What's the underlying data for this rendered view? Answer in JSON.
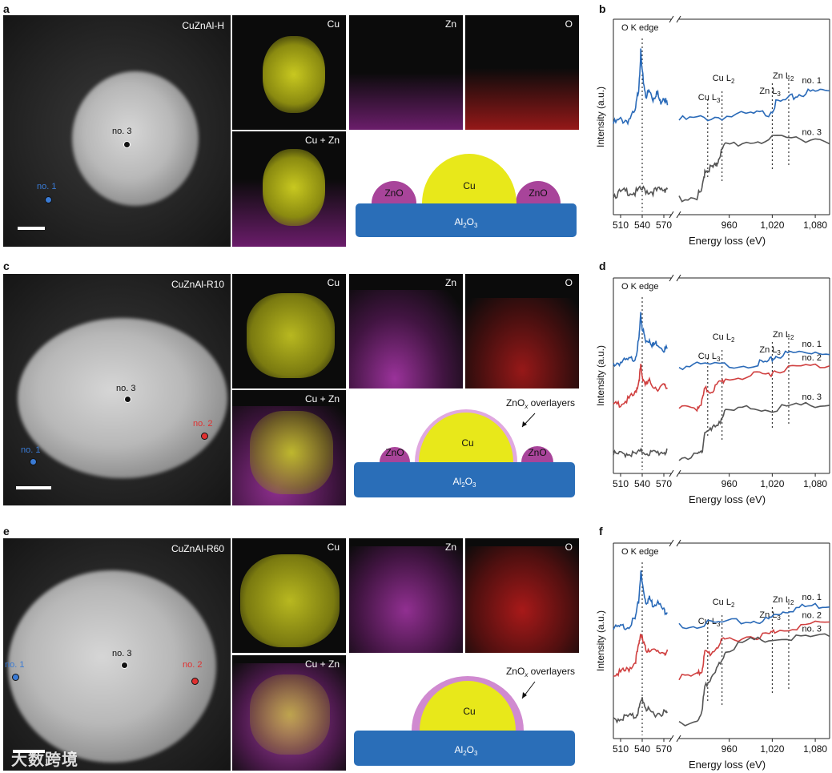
{
  "panels": {
    "a": {
      "letter": "a",
      "sample": "CuZnAl-H",
      "spots": [
        "no. 3",
        "no. 1"
      ]
    },
    "c": {
      "letter": "c",
      "sample": "CuZnAl-R10",
      "spots": [
        "no. 3",
        "no. 1",
        "no. 2"
      ]
    },
    "e": {
      "letter": "e",
      "sample": "CuZnAl-R60",
      "spots": [
        "no. 3",
        "no. 1",
        "no. 2"
      ]
    },
    "b": {
      "letter": "b"
    },
    "d": {
      "letter": "d"
    },
    "f": {
      "letter": "f"
    }
  },
  "maps": {
    "cu": "Cu",
    "zn": "Zn",
    "o": "O",
    "cuzn": "Cu + Zn"
  },
  "schematic": {
    "support": "Al2O3",
    "support_main": "Al",
    "support_sub1": "2",
    "support_mid": "O",
    "support_sub2": "3",
    "cu": "Cu",
    "zno": "ZnO",
    "overlayer": "ZnOx overlayers",
    "overlayer_main": "ZnO",
    "overlayer_sub": "x",
    "overlayer_rest": " overlayers"
  },
  "colors": {
    "cu_map": "#d8d820",
    "zn_map": "#d040d0",
    "o_map": "#e02020",
    "spot1": "#3a7bd5",
    "spot2": "#e03030",
    "spot3": "#111111",
    "trace1": "#2a6ab8",
    "trace2": "#d04040",
    "trace3": "#555555",
    "cu_schem": "#e8e81a",
    "zno_schem": "#a8449a",
    "al2o3_schem": "#2a6eb8"
  },
  "watermark": "大数跨境",
  "chart_data": [
    {
      "panel": "b",
      "type": "line",
      "title": "",
      "xlabel": "Energy loss (eV)",
      "ylabel": "Intensity (a.u.)",
      "x_ticks_left": [
        "510",
        "540",
        "570"
      ],
      "x_ticks_right": [
        "960",
        "1,020",
        "1,080"
      ],
      "xlim_left": [
        500,
        580
      ],
      "xlim_right": [
        890,
        1100
      ],
      "annotations": [
        "O K edge",
        "Cu L",
        "3",
        "Cu L",
        "2",
        "Zn L",
        "3",
        "Zn L",
        "2"
      ],
      "edges": [
        540,
        930,
        950,
        1020,
        1043
      ],
      "series": [
        {
          "name": "no. 1",
          "offset": 2.0,
          "left": [
            [
              500,
              0.2
            ],
            [
              510,
              0.3
            ],
            [
              520,
              0.3
            ],
            [
              530,
              0.5
            ],
            [
              535,
              1.2
            ],
            [
              538,
              2.2
            ],
            [
              540,
              1.6
            ],
            [
              545,
              1.0
            ],
            [
              550,
              1.1
            ],
            [
              555,
              0.9
            ],
            [
              560,
              1.1
            ],
            [
              565,
              0.8
            ],
            [
              570,
              1.0
            ],
            [
              575,
              0.7
            ]
          ],
          "right": [
            [
              890,
              0.3
            ],
            [
              920,
              0.35
            ],
            [
              950,
              0.4
            ],
            [
              990,
              0.45
            ],
            [
              1015,
              0.5
            ],
            [
              1025,
              0.75
            ],
            [
              1045,
              0.9
            ],
            [
              1060,
              1.05
            ],
            [
              1080,
              1.1
            ],
            [
              1100,
              1.2
            ]
          ]
        },
        {
          "name": "no. 3",
          "offset": 0.0,
          "left": [
            [
              500,
              0.2
            ],
            [
              510,
              0.25
            ],
            [
              520,
              0.3
            ],
            [
              530,
              0.25
            ],
            [
              540,
              0.35
            ],
            [
              550,
              0.3
            ],
            [
              560,
              0.3
            ],
            [
              570,
              0.35
            ],
            [
              575,
              0.4
            ]
          ],
          "right": [
            [
              890,
              0.1
            ],
            [
              915,
              0.15
            ],
            [
              922,
              0.3
            ],
            [
              926,
              0.9
            ],
            [
              935,
              0.95
            ],
            [
              942,
              1.0
            ],
            [
              946,
              1.3
            ],
            [
              955,
              1.6
            ],
            [
              990,
              1.7
            ],
            [
              1020,
              1.75
            ],
            [
              1060,
              1.8
            ],
            [
              1100,
              1.75
            ]
          ]
        }
      ]
    },
    {
      "panel": "d",
      "type": "line",
      "title": "",
      "xlabel": "Energy loss (eV)",
      "ylabel": "Intensity (a.u.)",
      "x_ticks_left": [
        "510",
        "540",
        "570"
      ],
      "x_ticks_right": [
        "960",
        "1,020",
        "1,080"
      ],
      "xlim_left": [
        500,
        580
      ],
      "xlim_right": [
        890,
        1100
      ],
      "annotations": [
        "O K edge",
        "Cu L",
        "3",
        "Cu L",
        "2",
        "Zn L",
        "3",
        "Zn L",
        "2"
      ],
      "edges": [
        540,
        930,
        950,
        1020,
        1043
      ],
      "series": [
        {
          "name": "no. 1",
          "offset": 3.0,
          "left": [
            [
              500,
              0.2
            ],
            [
              510,
              0.25
            ],
            [
              520,
              0.3
            ],
            [
              530,
              0.4
            ],
            [
              535,
              0.9
            ],
            [
              538,
              1.8
            ],
            [
              540,
              1.4
            ],
            [
              545,
              0.9
            ],
            [
              550,
              1.0
            ],
            [
              555,
              0.8
            ],
            [
              560,
              0.9
            ],
            [
              570,
              0.7
            ],
            [
              575,
              0.7
            ]
          ],
          "right": [
            [
              890,
              0.1
            ],
            [
              920,
              0.15
            ],
            [
              960,
              0.15
            ],
            [
              1000,
              0.2
            ],
            [
              1015,
              0.25
            ],
            [
              1025,
              0.45
            ],
            [
              1045,
              0.55
            ],
            [
              1070,
              0.6
            ],
            [
              1100,
              0.6
            ]
          ]
        },
        {
          "name": "no. 2",
          "offset": 1.5,
          "left": [
            [
              500,
              0.3
            ],
            [
              510,
              0.4
            ],
            [
              520,
              0.5
            ],
            [
              530,
              0.7
            ],
            [
              535,
              1.1
            ],
            [
              538,
              1.6
            ],
            [
              540,
              1.3
            ],
            [
              545,
              1.0
            ],
            [
              550,
              1.1
            ],
            [
              560,
              0.9
            ],
            [
              570,
              0.95
            ],
            [
              575,
              0.9
            ]
          ],
          "right": [
            [
              890,
              0.2
            ],
            [
              915,
              0.25
            ],
            [
              922,
              0.45
            ],
            [
              926,
              0.85
            ],
            [
              935,
              0.8
            ],
            [
              946,
              1.05
            ],
            [
              955,
              1.2
            ],
            [
              990,
              1.3
            ],
            [
              1015,
              1.35
            ],
            [
              1025,
              1.5
            ],
            [
              1060,
              1.6
            ],
            [
              1100,
              1.65
            ]
          ]
        },
        {
          "name": "no. 3",
          "offset": 0.0,
          "left": [
            [
              500,
              0.2
            ],
            [
              510,
              0.2
            ],
            [
              520,
              0.25
            ],
            [
              530,
              0.2
            ],
            [
              540,
              0.3
            ],
            [
              550,
              0.25
            ],
            [
              560,
              0.25
            ],
            [
              570,
              0.3
            ],
            [
              575,
              0.25
            ]
          ],
          "right": [
            [
              890,
              0.1
            ],
            [
              915,
              0.15
            ],
            [
              922,
              0.3
            ],
            [
              926,
              0.95
            ],
            [
              935,
              1.0
            ],
            [
              946,
              1.3
            ],
            [
              955,
              1.6
            ],
            [
              990,
              1.75
            ],
            [
              1020,
              1.7
            ],
            [
              1060,
              1.8
            ],
            [
              1100,
              1.85
            ]
          ]
        }
      ]
    },
    {
      "panel": "f",
      "type": "line",
      "title": "",
      "xlabel": "Energy loss (eV)",
      "ylabel": "Intensity (a.u.)",
      "x_ticks_left": [
        "510",
        "540",
        "570"
      ],
      "x_ticks_right": [
        "960",
        "1,020",
        "1,080"
      ],
      "xlim_left": [
        500,
        580
      ],
      "xlim_right": [
        890,
        1100
      ],
      "annotations": [
        "O K edge",
        "Cu L",
        "3",
        "Cu L",
        "2",
        "Zn L",
        "3",
        "Zn L",
        "2"
      ],
      "edges": [
        540,
        930,
        950,
        1020,
        1043
      ],
      "series": [
        {
          "name": "no. 1",
          "offset": 3.0,
          "left": [
            [
              500,
              0.2
            ],
            [
              510,
              0.25
            ],
            [
              520,
              0.3
            ],
            [
              530,
              0.5
            ],
            [
              535,
              1.1
            ],
            [
              538,
              2.1
            ],
            [
              540,
              1.7
            ],
            [
              545,
              1.1
            ],
            [
              550,
              1.2
            ],
            [
              555,
              1.0
            ],
            [
              560,
              1.1
            ],
            [
              570,
              0.8
            ],
            [
              575,
              0.8
            ]
          ],
          "right": [
            [
              890,
              0.3
            ],
            [
              920,
              0.35
            ],
            [
              950,
              0.4
            ],
            [
              990,
              0.45
            ],
            [
              1015,
              0.5
            ],
            [
              1025,
              0.7
            ],
            [
              1045,
              0.85
            ],
            [
              1070,
              0.95
            ],
            [
              1100,
              1.0
            ]
          ]
        },
        {
          "name": "no. 2",
          "offset": 1.5,
          "left": [
            [
              500,
              0.2
            ],
            [
              510,
              0.25
            ],
            [
              520,
              0.35
            ],
            [
              530,
              0.6
            ],
            [
              535,
              1.1
            ],
            [
              538,
              1.6
            ],
            [
              540,
              1.35
            ],
            [
              545,
              1.0
            ],
            [
              550,
              1.05
            ],
            [
              560,
              0.9
            ],
            [
              570,
              0.95
            ],
            [
              575,
              0.9
            ]
          ],
          "right": [
            [
              890,
              0.1
            ],
            [
              915,
              0.15
            ],
            [
              922,
              0.35
            ],
            [
              926,
              0.9
            ],
            [
              935,
              0.9
            ],
            [
              946,
              1.2
            ],
            [
              955,
              1.35
            ],
            [
              990,
              1.45
            ],
            [
              1015,
              1.5
            ],
            [
              1025,
              1.65
            ],
            [
              1060,
              1.8
            ],
            [
              1100,
              1.9
            ]
          ]
        },
        {
          "name": "no. 3",
          "offset": 0.0,
          "left": [
            [
              500,
              0.2
            ],
            [
              510,
              0.25
            ],
            [
              520,
              0.3
            ],
            [
              530,
              0.3
            ],
            [
              535,
              0.5
            ],
            [
              540,
              0.9
            ],
            [
              545,
              0.6
            ],
            [
              550,
              0.45
            ],
            [
              560,
              0.4
            ],
            [
              570,
              0.45
            ],
            [
              575,
              0.4
            ]
          ],
          "right": [
            [
              890,
              0.1
            ],
            [
              915,
              0.15
            ],
            [
              922,
              0.4
            ],
            [
              926,
              1.4
            ],
            [
              935,
              1.5
            ],
            [
              946,
              2.0
            ],
            [
              955,
              2.5
            ],
            [
              990,
              2.8
            ],
            [
              1020,
              2.85
            ],
            [
              1060,
              2.9
            ],
            [
              1100,
              2.95
            ]
          ]
        }
      ]
    }
  ]
}
